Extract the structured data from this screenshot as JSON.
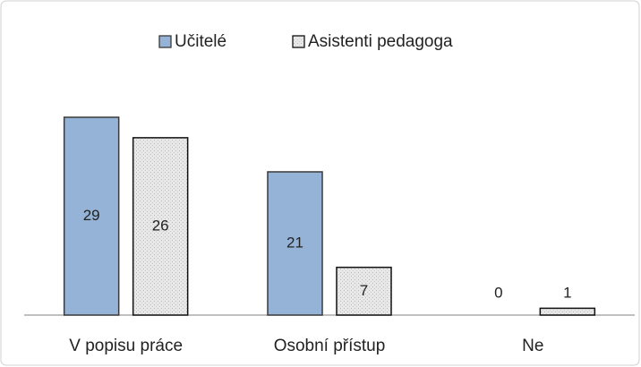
{
  "chart_data": {
    "type": "bar",
    "categories": [
      "V popisu práce",
      "Osobní přístup",
      "Ne"
    ],
    "series": [
      {
        "name": "Učitelé",
        "color": "#95b3d7",
        "values": [
          29,
          21,
          0
        ]
      },
      {
        "name": "Asistenti pedagoga",
        "color": "#e4e4e4",
        "values": [
          26,
          7,
          1
        ]
      }
    ],
    "legend": "top"
  }
}
